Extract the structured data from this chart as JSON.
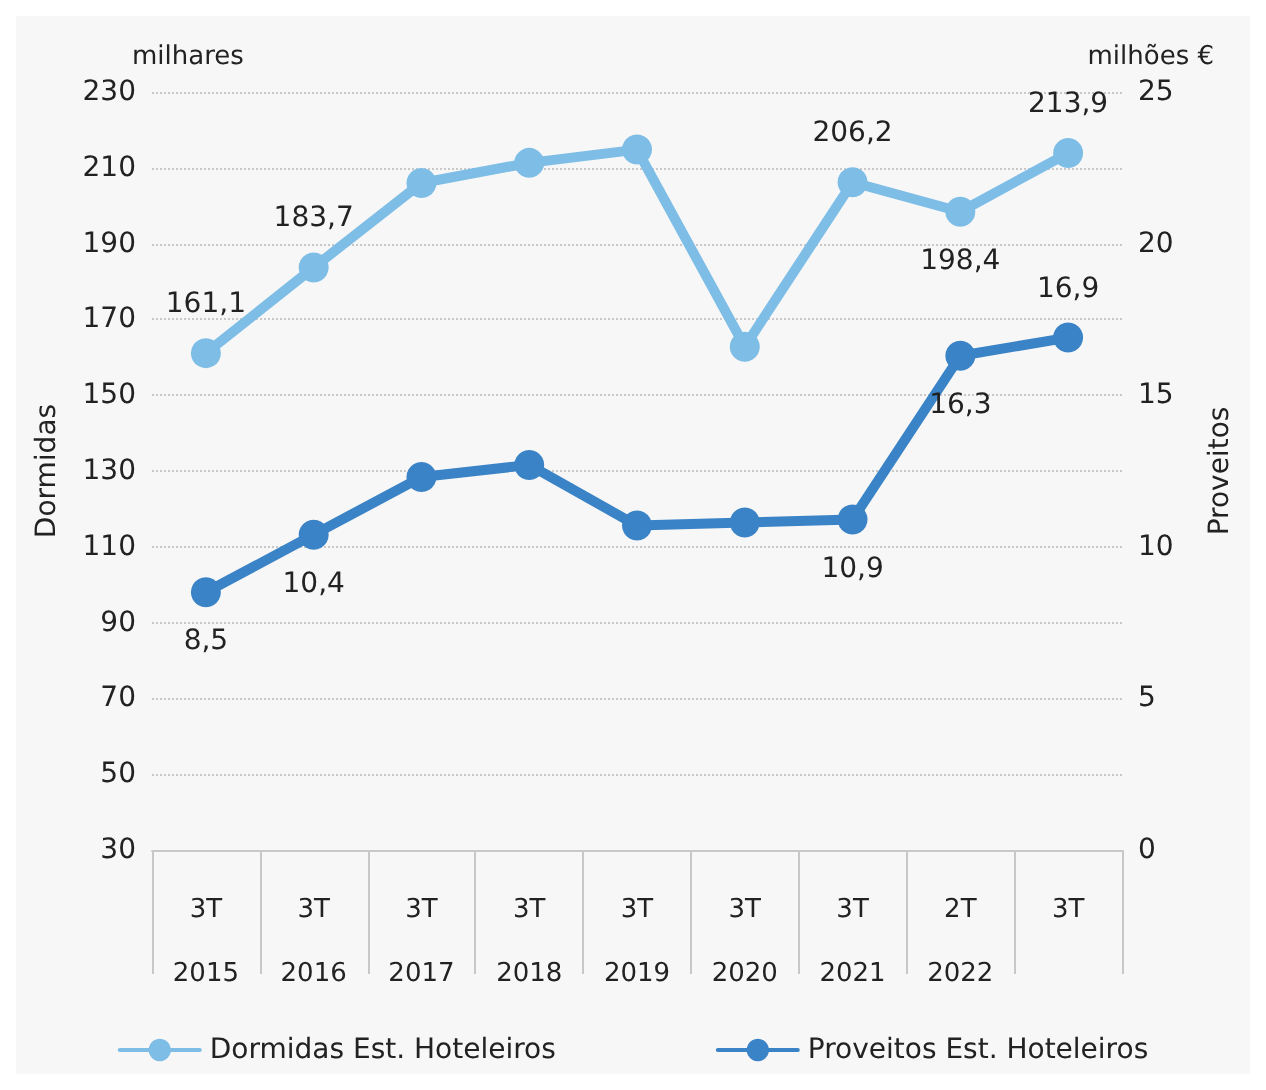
{
  "chart_data": {
    "type": "line",
    "ylabel": "Dormidas",
    "y2label": "Proveitos",
    "annotations": [
      "milhares",
      "milhões €"
    ],
    "categories": [
      "3T\n2015",
      "3T\n2016",
      "3T\n2017",
      "3T\n2018",
      "3T\n2019",
      "3T\n2020",
      "3T\n2021",
      "2T\n2022",
      "3T"
    ],
    "series": [
      {
        "name": "Dormidas Est. Hoteleiros",
        "color": "#7dbde6",
        "values": [
          161.1,
          183.7,
          206,
          211.3,
          214.8,
          162.8,
          206.2,
          198.4,
          213.9
        ],
        "value_labels": [
          "161,1",
          "183,7",
          null,
          null,
          null,
          null,
          "206,2",
          "198,4",
          "213,9"
        ]
      },
      {
        "name": "Proveitos Est. Hoteleiros",
        "color": "#3a83c6",
        "axis": "y2",
        "values": [
          8.5,
          10.4,
          12.3,
          12.7,
          10.7,
          10.8,
          10.9,
          16.3,
          16.9
        ],
        "value_labels": [
          "8,5",
          "10,4",
          null,
          null,
          null,
          null,
          "10,9",
          "16,3",
          "16,9"
        ]
      }
    ],
    "ylim": [
      30,
      230
    ],
    "yticks": [
      30,
      50,
      70,
      90,
      110,
      130,
      150,
      170,
      190,
      210,
      230
    ],
    "y2lim": [
      0,
      25
    ],
    "y2ticks": [
      0,
      5,
      10,
      15,
      20,
      25
    ],
    "grid": "y",
    "legend": "bottom",
    "marker": "circle",
    "line_style": "solid"
  }
}
